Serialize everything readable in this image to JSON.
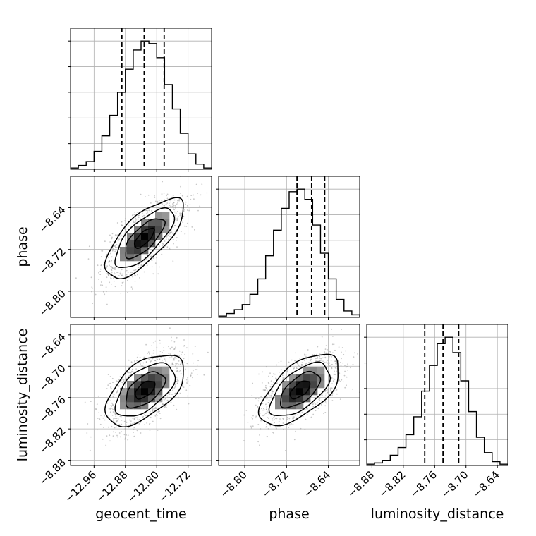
{
  "chart_data": {
    "type": "corner",
    "parameters": [
      "geocent_time",
      "phase",
      "luminosity_distance"
    ],
    "grid": true,
    "histograms": [
      {
        "parameter": "geocent_time",
        "xlim": [
          -13.02,
          -12.66
        ],
        "xticks": [
          "-12.96",
          "-12.88",
          "-12.80",
          "-12.72"
        ],
        "xtick_values": [
          -12.96,
          -12.88,
          -12.8,
          -12.72
        ],
        "bins": [
          -13.02,
          -13.0,
          -12.98,
          -12.96,
          -12.94,
          -12.92,
          -12.9,
          -12.88,
          -12.86,
          -12.84,
          -12.82,
          -12.8,
          -12.78,
          -12.76,
          -12.74,
          -12.72,
          -12.7,
          -12.68,
          -12.66
        ],
        "counts": [
          0.01,
          0.03,
          0.06,
          0.14,
          0.26,
          0.42,
          0.6,
          0.78,
          0.93,
          1.0,
          0.98,
          0.87,
          0.66,
          0.47,
          0.28,
          0.12,
          0.04,
          0.01
        ],
        "quantiles": [
          -12.889,
          -12.832,
          -12.781
        ]
      },
      {
        "parameter": "phase",
        "xlim": [
          -8.85,
          -8.58
        ],
        "xticks": [
          "-8.80",
          "-8.72",
          "-8.64"
        ],
        "xtick_values": [
          -8.8,
          -8.72,
          -8.64
        ],
        "bins": [
          -8.85,
          -8.835,
          -8.82,
          -8.805,
          -8.79,
          -8.775,
          -8.76,
          -8.745,
          -8.73,
          -8.715,
          -8.7,
          -8.685,
          -8.67,
          -8.655,
          -8.64,
          -8.625,
          -8.61,
          -8.595,
          -8.58
        ],
        "counts": [
          0.01,
          0.03,
          0.06,
          0.1,
          0.18,
          0.3,
          0.48,
          0.68,
          0.85,
          0.98,
          1.0,
          0.92,
          0.72,
          0.5,
          0.3,
          0.14,
          0.05,
          0.02
        ],
        "quantiles": [
          -8.7,
          -8.672,
          -8.647
        ]
      },
      {
        "parameter": "luminosity_distance",
        "xlim": [
          -8.89,
          -8.62
        ],
        "xticks": [
          "-8.88",
          "-8.82",
          "-8.76",
          "-8.70",
          "-8.64"
        ],
        "xtick_values": [
          -8.88,
          -8.82,
          -8.76,
          -8.7,
          -8.64
        ],
        "bins": [
          -8.89,
          -8.875,
          -8.86,
          -8.845,
          -8.83,
          -8.815,
          -8.8,
          -8.785,
          -8.77,
          -8.755,
          -8.74,
          -8.725,
          -8.71,
          -8.695,
          -8.68,
          -8.665,
          -8.65,
          -8.635,
          -8.62
        ],
        "counts": [
          0.01,
          0.02,
          0.04,
          0.08,
          0.14,
          0.24,
          0.38,
          0.58,
          0.78,
          0.95,
          1.0,
          0.88,
          0.66,
          0.42,
          0.22,
          0.1,
          0.03,
          0.01
        ],
        "quantiles": [
          -8.779,
          -8.744,
          -8.714
        ]
      }
    ],
    "scatter_panels": [
      {
        "x_parameter": "geocent_time",
        "y_parameter": "phase",
        "xlim": [
          -13.02,
          -12.66
        ],
        "ylim": [
          -8.85,
          -8.58
        ],
        "yticks": [
          "-8.80",
          "-8.72",
          "-8.64"
        ],
        "ytick_values": [
          -8.8,
          -8.72,
          -8.64
        ],
        "mean": [
          -12.832,
          -8.698
        ],
        "std": [
          0.05,
          0.038
        ],
        "correlation": 0.72,
        "contour_levels_sigma": [
          0.5,
          1.0,
          1.5,
          2.0
        ]
      },
      {
        "x_parameter": "geocent_time",
        "y_parameter": "luminosity_distance",
        "xlim": [
          -13.02,
          -12.66
        ],
        "ylim": [
          -8.89,
          -8.62
        ],
        "yticks": [
          "-8.88",
          "-8.82",
          "-8.76",
          "-8.70",
          "-8.64"
        ],
        "ytick_values": [
          -8.88,
          -8.82,
          -8.76,
          -8.7,
          -8.64
        ],
        "mean": [
          -12.83,
          -8.745
        ],
        "std": [
          0.05,
          0.034
        ],
        "correlation": 0.55,
        "contour_levels_sigma": [
          0.5,
          1.0,
          1.5,
          2.0
        ]
      },
      {
        "x_parameter": "phase",
        "y_parameter": "luminosity_distance",
        "xlim": [
          -8.85,
          -8.58
        ],
        "ylim": [
          -8.89,
          -8.62
        ],
        "mean": [
          -8.694,
          -8.745
        ],
        "std": [
          0.038,
          0.034
        ],
        "correlation": 0.6,
        "contour_levels_sigma": [
          0.5,
          1.0,
          1.5,
          2.0
        ]
      }
    ],
    "colors": {
      "line": "#000000",
      "scatter": "#9a9a9a",
      "grid": "#b0b0b0"
    }
  },
  "labels": {
    "x0": "geocent_time",
    "x1": "phase",
    "x2": "luminosity_distance",
    "y1": "phase",
    "y2": "luminosity_distance"
  }
}
